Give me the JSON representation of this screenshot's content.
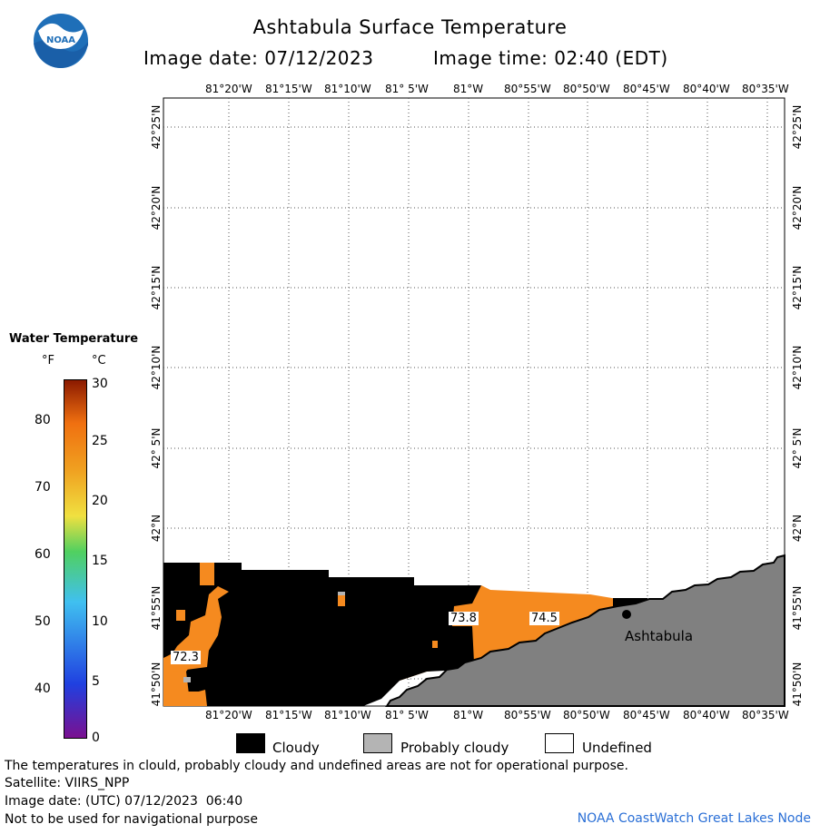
{
  "header": {
    "title": "Ashtabula Surface Temperature",
    "image_date_label": "Image date: 07/12/2023",
    "image_time_label": "Image time: 02:40 (EDT)"
  },
  "logo": {
    "text": "NOAA",
    "colors": [
      "#1f6fb8",
      "#ffffff"
    ]
  },
  "legend": {
    "title": "Water Temperature",
    "unit_f": "°F",
    "unit_c": "°C",
    "fahrenheit_ticks": [
      "80",
      "70",
      "60",
      "50",
      "40"
    ],
    "celsius_ticks": [
      "30",
      "25",
      "20",
      "15",
      "10",
      "5",
      "0"
    ],
    "colorbar_stops": [
      "#7a1090",
      "#2040e0",
      "#40c0f0",
      "#50d060",
      "#f0e040",
      "#f0a020",
      "#f07010",
      "#8b1a00"
    ]
  },
  "map": {
    "lon_labels": [
      "81°20'W",
      "81°15'W",
      "81°10'W",
      "81° 5'W",
      "81°W",
      "80°55'W",
      "80°50'W",
      "80°45'W",
      "80°40'W",
      "80°35'W"
    ],
    "lat_labels": [
      "42°25'N",
      "42°20'N",
      "42°15'N",
      "42°10'N",
      "42° 5'N",
      "42°N",
      "41°55'N",
      "41°50'N"
    ],
    "city": "Ashtabula",
    "temperature_labels": [
      "73.8",
      "74.5",
      "72.3"
    ],
    "colors": {
      "cloudy": "#000000",
      "land": "#808080",
      "water_warm": "#f58a1f",
      "probably_cloudy": "#b4b4b4"
    }
  },
  "key": {
    "cloudy": "Cloudy",
    "probably_cloudy": "Probably cloudy",
    "undefined": "Undefined"
  },
  "footer": {
    "line1": "The temperatures in clould, probably cloudy and undefined areas are not for operational purpose.",
    "line2": "Satellite: VIIRS_NPP",
    "line3": "Image date: (UTC) 07/12/2023  06:40",
    "line4": "Not to be used for navigational purpose",
    "credit": "NOAA CoastWatch Great Lakes Node"
  }
}
